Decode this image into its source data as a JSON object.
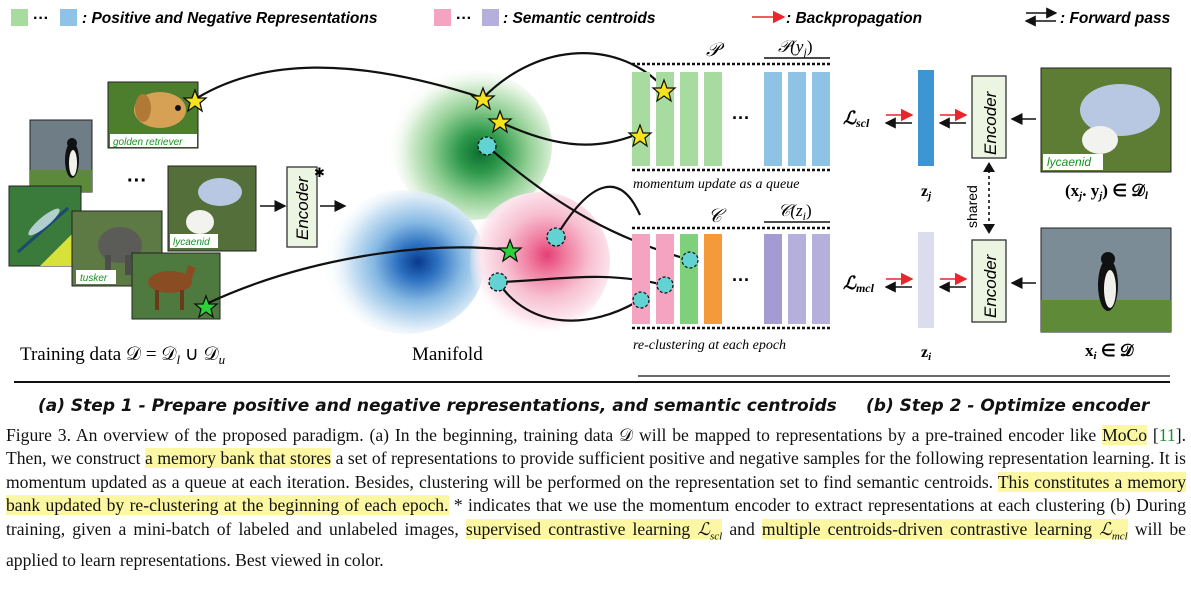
{
  "legend": {
    "pos_neg": ": Positive and Negative Representations",
    "centroids": ": Semantic centroids",
    "backprop": ": Backpropagation",
    "forward": ": Forward pass",
    "dots": "···"
  },
  "step1": {
    "image_labels": [
      "golden retriever",
      "lycaenid",
      "tusker"
    ],
    "ellipsis": "···",
    "encoder": "Encoder",
    "encoder_mark": "✱",
    "training_label": "Training data 𝒟 = 𝒟",
    "training_sub_l": "l",
    "training_union": " ∪ 𝒟",
    "training_sub_u": "u",
    "manifold_label": "Manifold",
    "p_label": "𝒫",
    "p_yj_label": "𝒫(y",
    "p_yj_sub": "j",
    "c_label": "𝒞",
    "c_zi_label": "𝒞(z",
    "c_zi_sub": "i",
    "queue_caption": "momentum update as a queue",
    "recluster_caption": "re-clustering at each epoch",
    "bank_dots": "···"
  },
  "step2": {
    "lscl": "ℒ",
    "lscl_sub": "scl",
    "lmcl": "ℒ",
    "lmcl_sub": "mcl",
    "zj": "z",
    "zj_sub": "j",
    "zi": "z",
    "zi_sub": "i",
    "encoder": "Encoder",
    "shared": "shared",
    "butterfly_label": "lycaenid",
    "xj": "(x",
    "xj_sub": "j",
    "xj_mid": ". y",
    "xj_end": ") ∈ 𝒟",
    "xj_end_sub": "l",
    "xi": "x",
    "xi_sub": "i",
    "xi_end": " ∈ 𝒟"
  },
  "subcaption_a": "(a) Step 1 - Prepare positive and negative representations, and semantic centroids",
  "subcaption_b": "(b) Step 2 - Optimize encoder",
  "caption": {
    "t1": "Figure 3. An overview of the proposed paradigm. (a) In the beginning, training data 𝒟 will be mapped to representations by a pre-trained encoder like ",
    "moco": "MoCo",
    "t2": " [",
    "cite": "11",
    "t3": "]. Then, we construct ",
    "hl1": "a memory bank that stores",
    "t4": " a set of representations to provide sufficient positive and negative samples for the following representation learning.  It is momentum updated as a queue at each iteration.  Besides, clustering will be performed on the representation set to find semantic centroids. ",
    "hl2": "This constitutes a memory bank updated by re-clustering at the beginning of each epoch.",
    "t5": " * indicates that we use the momentum encoder to extract representations at each clustering (b) During training, given a mini-batch of labeled and unlabeled images, ",
    "hl3": "supervised contrastive learning ",
    "hl3_math": "ℒ",
    "hl3_sub": "scl",
    "t6": " and ",
    "hl4": "multiple centroids-driven contrastive learning ",
    "hl4_math": "ℒ",
    "hl4_sub": "mcl",
    "t7": " will be applied to learn representations. Best viewed in color."
  },
  "colors": {
    "positive": "#a8dba0",
    "negative": "#8fc3e6",
    "centroid_pink": "#f4a3c1",
    "centroid_purple": "#b5b0db",
    "encoder_fill": "#ecf5e2",
    "backprop": "#e8262b",
    "highlight": "#fbf7a2"
  }
}
